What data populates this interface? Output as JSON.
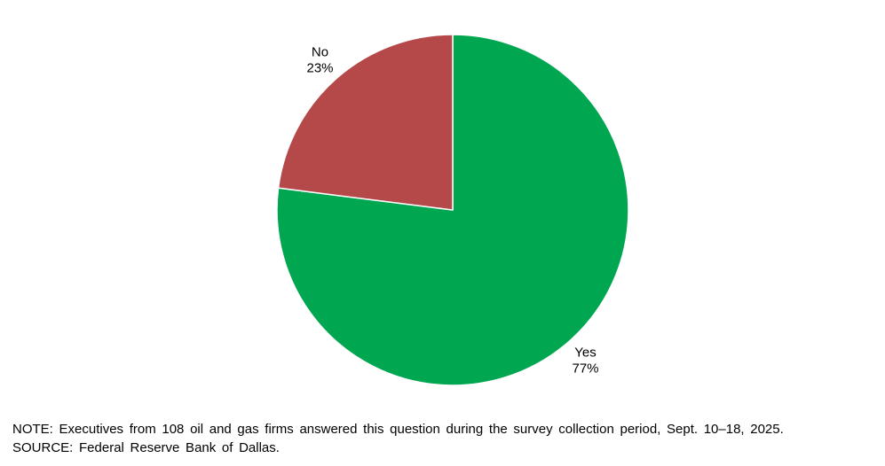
{
  "chart_data": {
    "type": "pie",
    "labels": [
      "Yes",
      "No"
    ],
    "values": [
      77,
      23
    ],
    "value_labels": [
      "77%",
      "23%"
    ],
    "colors": [
      "#00a650",
      "#b5494a"
    ],
    "start_angle_deg": 90,
    "direction": "clockwise",
    "slice_border_color": "#ffffff",
    "legend_position": "none",
    "title": ""
  },
  "footer": {
    "note": "NOTE: Executives from 108 oil and gas firms answered this question during the survey collection period, Sept. 10–18, 2025.",
    "source": "SOURCE: Federal Reserve Bank of Dallas."
  }
}
